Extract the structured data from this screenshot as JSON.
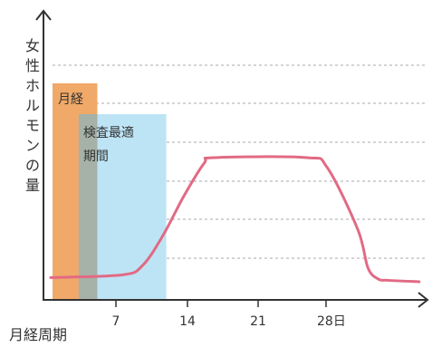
{
  "chart_data": {
    "type": "line",
    "ylabel": "女性ホルモンの量",
    "xlabel": "月経周期",
    "x_ticks": [
      "7",
      "14",
      "21",
      "28日"
    ],
    "x_tick_values": [
      7,
      14,
      21,
      28
    ],
    "xlim": [
      0,
      37
    ],
    "ylim": [
      0,
      1
    ],
    "grid": true,
    "bands": [
      {
        "label": "月経",
        "x_start": 0,
        "x_end": 5,
        "color": "#f0a968"
      },
      {
        "label": "検査最適期間",
        "x_start": 3,
        "x_end": 12,
        "color": "#bde4f5"
      }
    ],
    "series": [
      {
        "color": "#e16a84",
        "x": [
          0,
          7,
          9,
          11,
          13,
          15,
          16,
          25,
          27,
          30,
          31,
          32,
          33,
          36
        ],
        "y": [
          0.05,
          0.07,
          0.14,
          0.36,
          0.64,
          0.88,
          0.92,
          0.92,
          0.85,
          0.4,
          0.12,
          0.04,
          0.03,
          0.02
        ]
      }
    ]
  },
  "colors": {
    "axis": "#333333",
    "grid": "#aaaaaa",
    "overlap": "#a6b1a7"
  }
}
